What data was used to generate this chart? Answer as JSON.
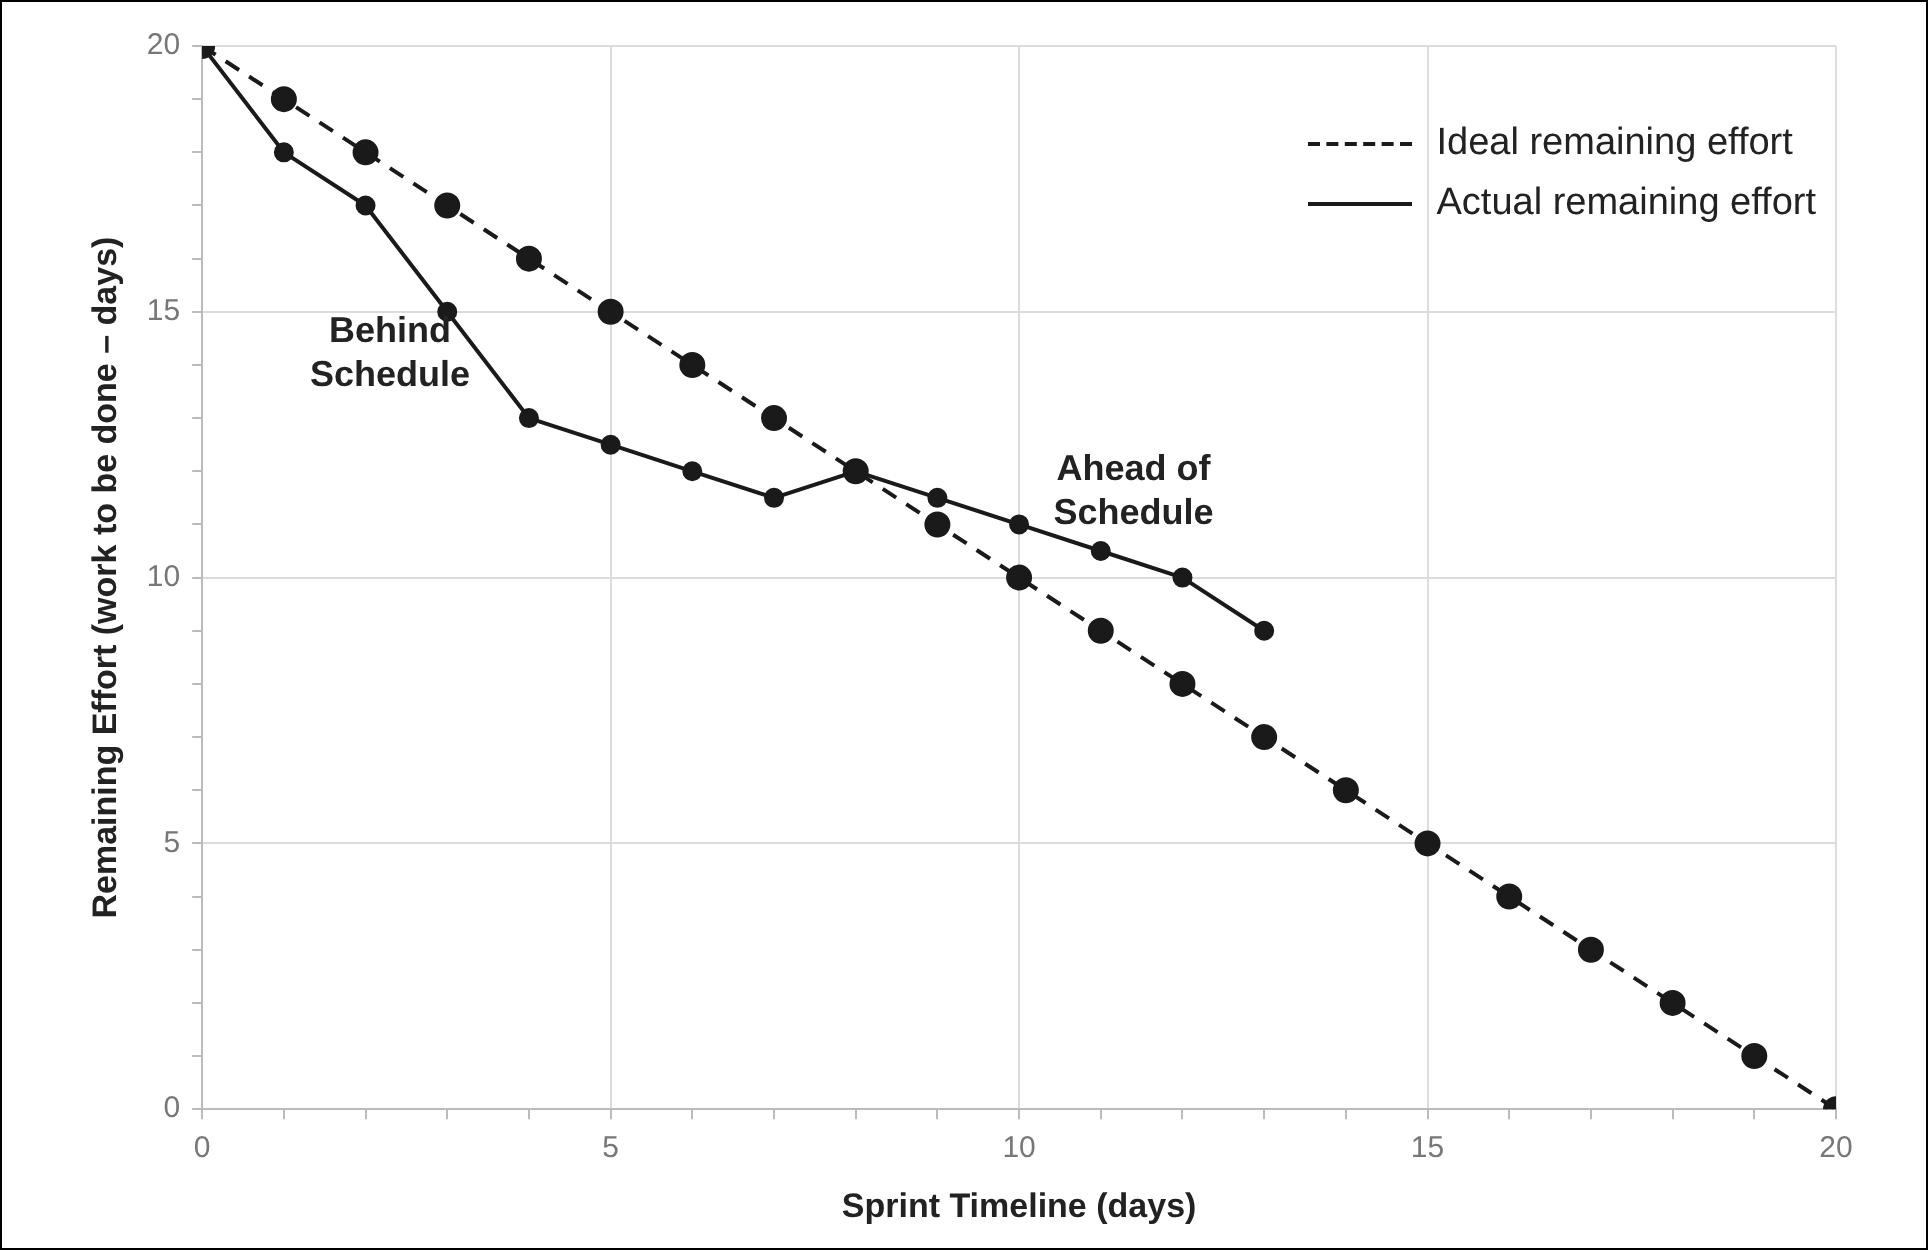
{
  "chart_data": {
    "type": "line",
    "xlabel": "Sprint Timeline (days)",
    "ylabel": "Remaining Effort (work to be done – days)",
    "xlim": [
      0,
      20
    ],
    "ylim": [
      0,
      20
    ],
    "xticks": [
      0,
      {
        "value": 1,
        "label": null
      },
      {
        "value": 2,
        "label": null
      },
      {
        "value": 3,
        "label": null
      },
      {
        "value": 4,
        "label": null
      },
      5,
      {
        "value": 6,
        "label": null
      },
      {
        "value": 7,
        "label": null
      },
      {
        "value": 8,
        "label": null
      },
      {
        "value": 9,
        "label": null
      },
      10,
      {
        "value": 11,
        "label": null
      },
      {
        "value": 12,
        "label": null
      },
      {
        "value": 13,
        "label": null
      },
      {
        "value": 14,
        "label": null
      },
      15,
      {
        "value": 16,
        "label": null
      },
      {
        "value": 17,
        "label": null
      },
      {
        "value": 18,
        "label": null
      },
      {
        "value": 19,
        "label": null
      },
      20
    ],
    "yticks": [
      0,
      {
        "value": 1,
        "label": null
      },
      {
        "value": 2,
        "label": null
      },
      {
        "value": 3,
        "label": null
      },
      {
        "value": 4,
        "label": null
      },
      5,
      {
        "value": 6,
        "label": null
      },
      {
        "value": 7,
        "label": null
      },
      {
        "value": 8,
        "label": null
      },
      {
        "value": 9,
        "label": null
      },
      10,
      {
        "value": 11,
        "label": null
      },
      {
        "value": 12,
        "label": null
      },
      {
        "value": 13,
        "label": null
      },
      {
        "value": 14,
        "label": null
      },
      15,
      {
        "value": 16,
        "label": null
      },
      {
        "value": 17,
        "label": null
      },
      {
        "value": 18,
        "label": null
      },
      {
        "value": 19,
        "label": null
      },
      20
    ],
    "grid": true,
    "legend": "top right",
    "marker": "circle",
    "series": [
      {
        "name": "Ideal remaining effort",
        "color": "#1a1a1a",
        "line_style": "dashed",
        "x": [
          0,
          1,
          2,
          3,
          4,
          5,
          6,
          7,
          8,
          9,
          10,
          11,
          12,
          13,
          14,
          15,
          16,
          17,
          18,
          19,
          20
        ],
        "values": [
          20,
          19,
          18,
          17,
          16,
          15,
          14,
          13,
          12,
          11,
          10,
          9,
          8,
          7,
          6,
          5,
          4,
          3,
          2,
          1,
          0
        ]
      },
      {
        "name": "Actual remaining effort",
        "color": "#1a1a1a",
        "line_style": "solid",
        "x": [
          0,
          1,
          2,
          3,
          4,
          5,
          6,
          7,
          8,
          9,
          10,
          11,
          12,
          13
        ],
        "values": [
          20,
          18,
          17,
          15,
          13,
          12.5,
          12,
          11.5,
          12,
          11.5,
          11,
          10.5,
          10,
          9
        ]
      }
    ],
    "annotations": [
      "Behind Schedule",
      "Ahead of Schedule"
    ]
  }
}
